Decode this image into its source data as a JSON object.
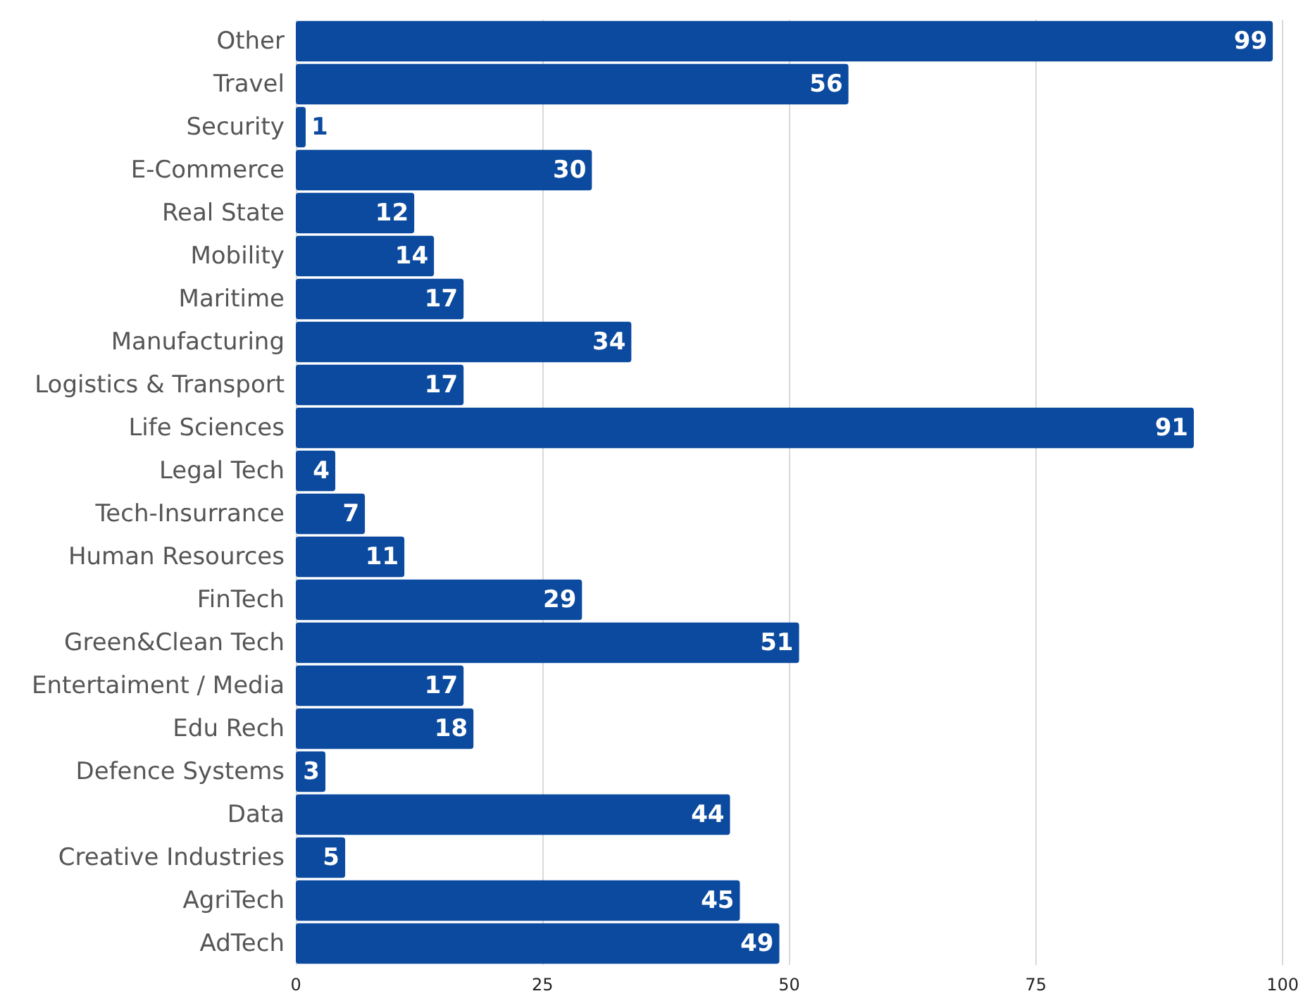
{
  "chart_data": {
    "type": "bar",
    "orientation": "horizontal",
    "categories": [
      "Other",
      "Travel",
      "Security",
      "E-Commerce",
      "Real State",
      "Mobility",
      "Maritime",
      "Manufacturing",
      "Logistics & Transport",
      "Life Sciences",
      "Legal Tech",
      "Tech-Insurrance",
      "Human Resources",
      "FinTech",
      "Green&Clean Tech",
      "Entertaiment / Media",
      "Edu Rech",
      "Defence Systems",
      "Data",
      "Creative Industries",
      "AgriTech",
      "AdTech"
    ],
    "values": [
      99,
      56,
      1,
      30,
      12,
      14,
      17,
      34,
      17,
      91,
      4,
      7,
      11,
      29,
      51,
      17,
      18,
      3,
      44,
      5,
      45,
      49
    ],
    "color": "#0b4a9e",
    "xlim": [
      0,
      100
    ],
    "xticks": [
      0,
      25,
      50,
      75,
      100
    ],
    "grid": "x",
    "data_labels": true
  }
}
